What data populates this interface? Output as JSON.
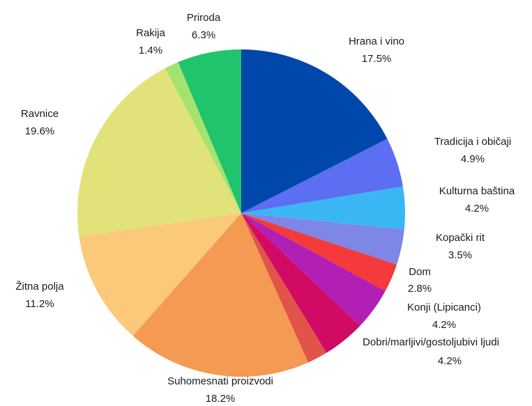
{
  "chart_data": {
    "type": "pie",
    "title": "",
    "start_angle_deg": 0,
    "direction": "clockwise",
    "slices": [
      {
        "label": "Hrana i vino",
        "value_label": "17.5%",
        "value": 17.5,
        "color": "#0047AB"
      },
      {
        "label": "Tradicija i običaji",
        "value_label": "4.9%",
        "value": 4.9,
        "color": "#5C6EF2"
      },
      {
        "label": "Kulturna baština",
        "value_label": "4.2%",
        "value": 4.2,
        "color": "#3BB6F5"
      },
      {
        "label": "Kopački rit",
        "value_label": "3.5%",
        "value": 3.5,
        "color": "#7E86E6"
      },
      {
        "label": "Dom",
        "value_label": "2.8%",
        "value": 2.8,
        "color": "#F43A3A"
      },
      {
        "label": "Konji (Lipicanci)",
        "value_label": "4.2%",
        "value": 4.2,
        "color": "#B21FB5"
      },
      {
        "label": "Dobri/marljivi/gostoljubivi ljudi",
        "value_label": "4.2%",
        "value": 4.2,
        "color": "#D10A63"
      },
      {
        "label": "",
        "value_label": "",
        "value": 2.0,
        "color": "#E0544A"
      },
      {
        "label": "Suhomesnati proizvodi",
        "value_label": "18.2%",
        "value": 18.2,
        "color": "#F49A52"
      },
      {
        "label": "Žitna polja",
        "value_label": "11.2%",
        "value": 11.2,
        "color": "#FAC97A"
      },
      {
        "label": "Ravnice",
        "value_label": "19.6%",
        "value": 19.6,
        "color": "#E2E27A"
      },
      {
        "label": "Rakija",
        "value_label": "1.4%",
        "value": 1.4,
        "color": "#A6E36E"
      },
      {
        "label": "Priroda",
        "value_label": "6.3%",
        "value": 6.3,
        "color": "#1FC46C"
      }
    ]
  }
}
